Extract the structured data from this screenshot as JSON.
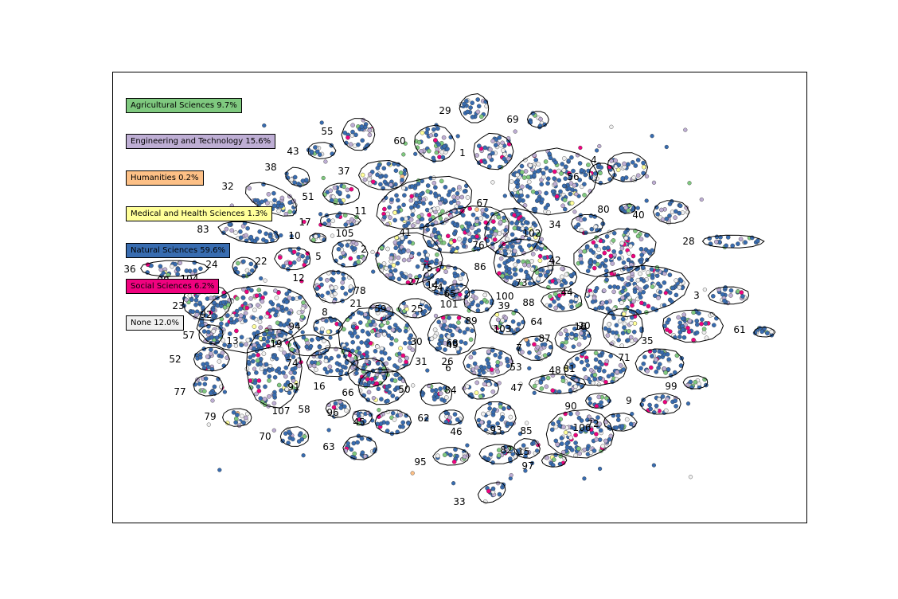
{
  "chart_data": {
    "type": "scatter",
    "title": "",
    "xlabel": "",
    "ylabel": "",
    "grid": false,
    "legend_position": "left, stacked vertically",
    "legend": [
      {
        "label": "Agricultural Sciences 9.7%",
        "color": "#7fc97f",
        "share": 9.7
      },
      {
        "label": "Engineering and Technology 15.6%",
        "color": "#beaed4",
        "share": 15.6
      },
      {
        "label": "Humanities 0.2%",
        "color": "#fdc086",
        "share": 0.2
      },
      {
        "label": "Medical and Health Sciences 1.3%",
        "color": "#ffff99",
        "share": 1.3
      },
      {
        "label": "Natural Sciences 59.6%",
        "color": "#386cb0",
        "share": 59.6
      },
      {
        "label": "Social Sciences 6.2%",
        "color": "#f0027f",
        "share": 6.2
      },
      {
        "label": "None 12.0%",
        "color": "#f0f0f0",
        "share": 12.0
      }
    ],
    "cluster_labels": [
      "29",
      "69",
      "55",
      "60",
      "1",
      "43",
      "38",
      "37",
      "4",
      "56",
      "32",
      "51",
      "67",
      "11",
      "80",
      "40",
      "17",
      "83",
      "10",
      "105",
      "41",
      "34",
      "102",
      "28",
      "36",
      "24",
      "22",
      "12",
      "2",
      "76",
      "75",
      "86",
      "42",
      "3",
      "23",
      "92",
      "57",
      "52",
      "77",
      "79",
      "70",
      "63",
      "95",
      "33",
      "61",
      "99",
      "9",
      "106",
      "46",
      "93",
      "85",
      "82",
      "15",
      "97",
      "59",
      "25",
      "30",
      "31",
      "50",
      "62",
      "19",
      "94",
      "74",
      "91",
      "107",
      "58",
      "96",
      "45",
      "66",
      "16",
      "8",
      "21",
      "54",
      "27",
      "65",
      "101",
      "73",
      "44",
      "89",
      "88",
      "100",
      "39",
      "103",
      "68",
      "71",
      "18",
      "13",
      "87",
      "64",
      "5",
      "26",
      "7",
      "53",
      "84",
      "81",
      "47",
      "48",
      "35",
      "90",
      "72",
      "20",
      "6",
      "14",
      "49",
      "98",
      "104",
      "78"
    ]
  }
}
